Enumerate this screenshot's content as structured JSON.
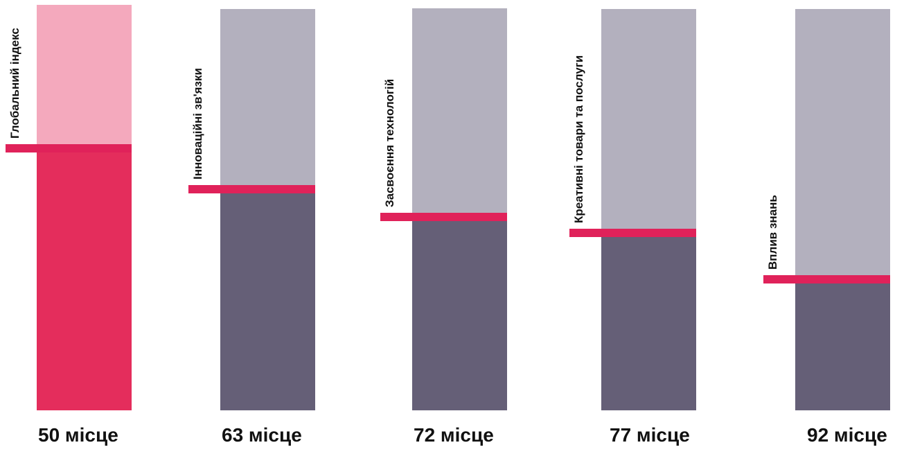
{
  "chart_data": {
    "type": "bar",
    "categories": [
      "Глобальний індекс",
      "Інноваційні зв'язки",
      "Засвоєння технологій",
      "Креативні товари та послуги",
      "Вплив знань"
    ],
    "values": [
      50,
      63,
      72,
      77,
      92
    ],
    "value_labels": [
      "50 місце",
      "63 місце",
      "72 місце",
      "77 місце",
      "92 місце"
    ],
    "ylim": [
      0,
      130
    ],
    "colors": {
      "highlight_top": "#f4a9bd",
      "highlight_fill": "#e42d5c",
      "top": "#b3b0be",
      "fill": "#655f77",
      "marker": "#e0225a"
    }
  }
}
